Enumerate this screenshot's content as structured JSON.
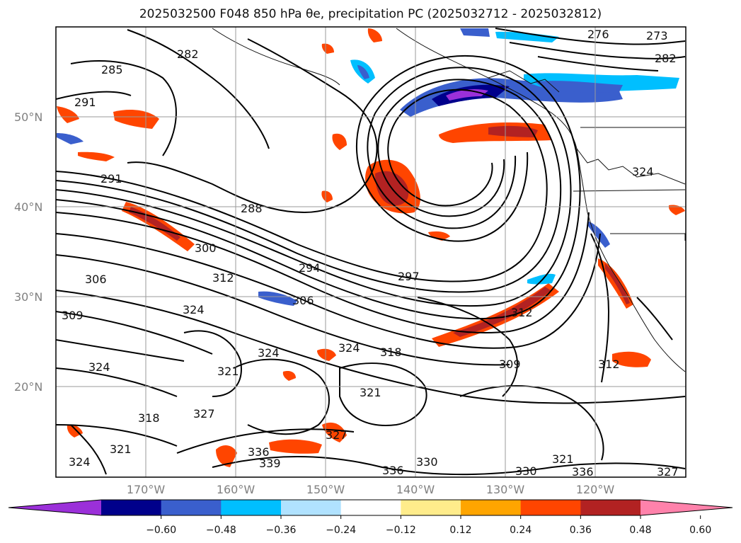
{
  "title": "2025032500 F048 850 hPa θe, precipitation PC (2025032712 - 2025032812)",
  "map": {
    "lat_labels": [
      "50°N",
      "40°N",
      "30°N",
      "20°N"
    ],
    "lon_labels": [
      "170°W",
      "160°W",
      "150°W",
      "140°W",
      "130°W",
      "120°W"
    ],
    "contour_labels": [
      "276",
      "273",
      "282",
      "285",
      "282",
      "291",
      "291",
      "288",
      "300",
      "306",
      "294",
      "297",
      "312",
      "306",
      "309",
      "324",
      "324",
      "324",
      "321",
      "318",
      "309",
      "312",
      "324",
      "321",
      "318",
      "327",
      "327",
      "336",
      "339",
      "330",
      "336",
      "321",
      "330",
      "336",
      "327",
      "312",
      "324",
      "324",
      "321"
    ]
  },
  "colorbar": {
    "ticks": [
      "−0.60",
      "−0.48",
      "−0.36",
      "−0.24",
      "−0.12",
      "0.12",
      "0.24",
      "0.36",
      "0.48",
      "0.60"
    ],
    "colors": [
      "#9b30d9",
      "#00008b",
      "#3a5fcd",
      "#00bfff",
      "#b0e2ff",
      "#ffffff",
      "#ffec8b",
      "#ffa500",
      "#ff4500",
      "#b22222",
      "#ff82ab"
    ]
  }
}
